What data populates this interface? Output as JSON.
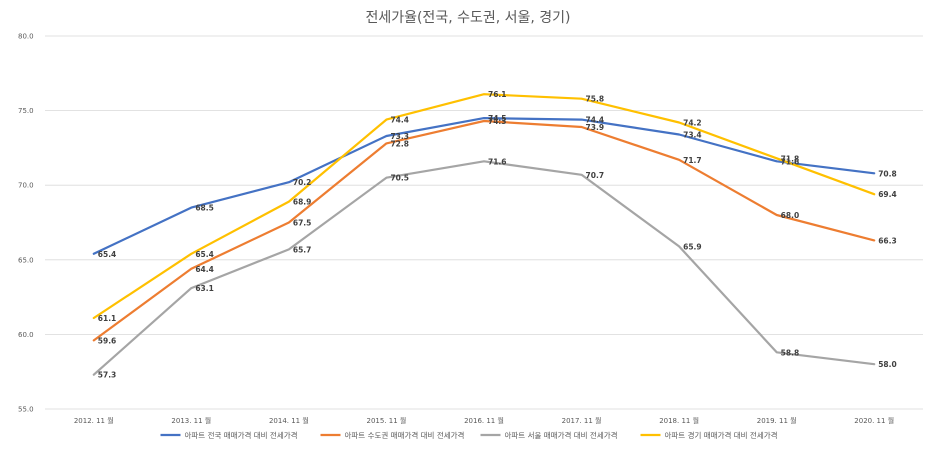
{
  "chart_data": {
    "type": "line",
    "title": "전세가율(전국, 수도권, 서울, 경기)",
    "xlabel": "",
    "ylabel": "",
    "categories": [
      "2012. 11 월",
      "2013. 11 월",
      "2014. 11 월",
      "2015. 11 월",
      "2016. 11 월",
      "2017. 11 월",
      "2018. 11 월",
      "2019. 11 월",
      "2020. 11 월"
    ],
    "ylim": [
      55.0,
      80.0
    ],
    "yticks": [
      "55.0",
      "60.0",
      "65.0",
      "70.0",
      "75.0",
      "80.0"
    ],
    "grid": "horizontal",
    "legend_position": "bottom",
    "series": [
      {
        "name": "아파트 전국 매매가격 대비 전세가격",
        "color": "#4472C4",
        "values": [
          65.4,
          68.5,
          70.2,
          73.3,
          74.5,
          74.4,
          73.4,
          71.6,
          70.8
        ]
      },
      {
        "name": "아파트 수도권 매매가격 대비 전세가격",
        "color": "#ED7D31",
        "values": [
          59.6,
          64.4,
          67.5,
          72.8,
          74.3,
          73.9,
          71.7,
          68.0,
          66.3
        ]
      },
      {
        "name": "아파트 서울 매매가격 대비 전세가격",
        "color": "#A5A5A5",
        "values": [
          57.3,
          63.1,
          65.7,
          70.5,
          71.6,
          70.7,
          65.9,
          58.8,
          58.0
        ]
      },
      {
        "name": "아파트 경기 매매가격 대비 전세가격",
        "color": "#FFC000",
        "values": [
          61.1,
          65.4,
          68.9,
          74.4,
          76.1,
          75.8,
          74.2,
          71.8,
          69.4
        ]
      }
    ]
  }
}
